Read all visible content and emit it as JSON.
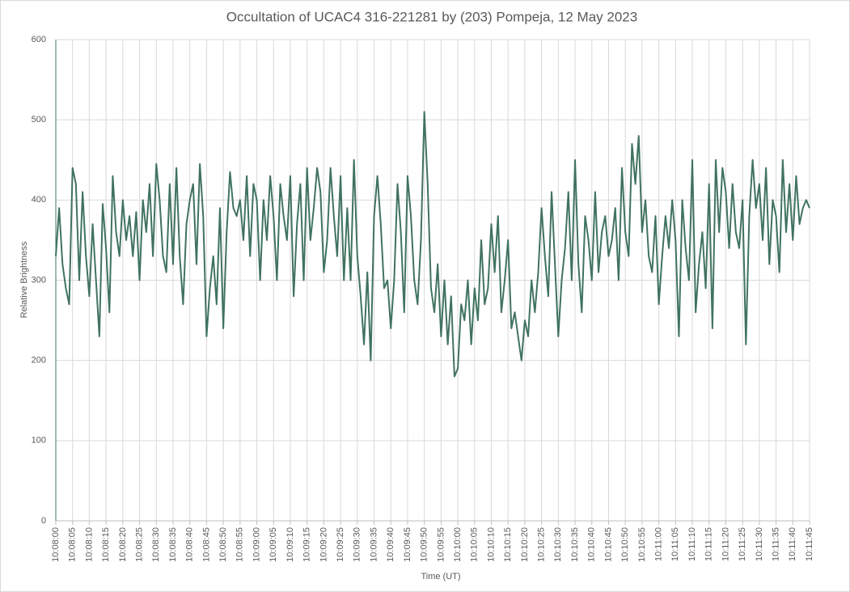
{
  "chart_data": {
    "type": "line",
    "title": "Occultation of UCAC4 316-221281 by (203) Pompeja, 12 May 2023",
    "x_label": "Time (UT)",
    "y_label": "Relative Brightness",
    "color": "#40735f",
    "grid": true,
    "ylim": [
      0,
      600
    ],
    "yticks": [
      0,
      100,
      200,
      300,
      400,
      500,
      600
    ],
    "categories": [
      "10:08:00",
      null,
      null,
      null,
      null,
      "10:08:05",
      null,
      null,
      null,
      null,
      "10:08:10",
      null,
      null,
      null,
      null,
      "10:08:15",
      null,
      null,
      null,
      null,
      "10:08:20",
      null,
      null,
      null,
      null,
      "10:08:25",
      null,
      null,
      null,
      null,
      "10:08:30",
      null,
      null,
      null,
      null,
      "10:08:35",
      null,
      null,
      null,
      null,
      "10:08:40",
      null,
      null,
      null,
      null,
      "10:08:45",
      null,
      null,
      null,
      null,
      "10:08:50",
      null,
      null,
      null,
      null,
      "10:08:55",
      null,
      null,
      null,
      null,
      "10:09:00",
      null,
      null,
      null,
      null,
      "10:09:05",
      null,
      null,
      null,
      null,
      "10:09:10",
      null,
      null,
      null,
      null,
      "10:09:15",
      null,
      null,
      null,
      null,
      "10:09:20",
      null,
      null,
      null,
      null,
      "10:09:25",
      null,
      null,
      null,
      null,
      "10:09:30",
      null,
      null,
      null,
      null,
      "10:09:35",
      null,
      null,
      null,
      null,
      "10:09:40",
      null,
      null,
      null,
      null,
      "10:09:45",
      null,
      null,
      null,
      null,
      "10:09:50",
      null,
      null,
      null,
      null,
      "10:09:55",
      null,
      null,
      null,
      null,
      "10:10:00",
      null,
      null,
      null,
      null,
      "10:10:05",
      null,
      null,
      null,
      null,
      "10:10:10",
      null,
      null,
      null,
      null,
      "10:10:15",
      null,
      null,
      null,
      null,
      "10:10:20",
      null,
      null,
      null,
      null,
      "10:10:25",
      null,
      null,
      null,
      null,
      "10:10:30",
      null,
      null,
      null,
      null,
      "10:10:35",
      null,
      null,
      null,
      null,
      "10:10:40",
      null,
      null,
      null,
      null,
      "10:10:45",
      null,
      null,
      null,
      null,
      "10:10:50",
      null,
      null,
      null,
      null,
      "10:10:55",
      null,
      null,
      null,
      null,
      "10:11:00",
      null,
      null,
      null,
      null,
      "10:11:05",
      null,
      null,
      null,
      null,
      "10:11:10",
      null,
      null,
      null,
      null,
      "10:11:15",
      null,
      null,
      null,
      null,
      "10:11:20",
      null,
      null,
      null,
      null,
      "10:11:25",
      null,
      null,
      null,
      null,
      "10:11:30",
      null,
      null,
      null,
      null,
      "10:11:35",
      null,
      null,
      null,
      null,
      "10:11:40",
      null,
      null,
      null,
      null,
      "10:11:45"
    ],
    "values": [
      330,
      390,
      320,
      290,
      270,
      440,
      420,
      300,
      410,
      330,
      280,
      370,
      300,
      230,
      395,
      340,
      260,
      430,
      360,
      330,
      400,
      350,
      380,
      330,
      385,
      300,
      400,
      360,
      420,
      330,
      445,
      400,
      330,
      310,
      420,
      320,
      440,
      330,
      270,
      370,
      400,
      420,
      320,
      445,
      380,
      230,
      290,
      330,
      270,
      390,
      240,
      360,
      435,
      390,
      380,
      400,
      350,
      430,
      330,
      420,
      400,
      300,
      400,
      350,
      430,
      380,
      300,
      420,
      380,
      350,
      430,
      280,
      370,
      420,
      300,
      440,
      350,
      390,
      440,
      410,
      310,
      350,
      440,
      380,
      330,
      430,
      300,
      390,
      300,
      450,
      330,
      280,
      220,
      310,
      200,
      380,
      430,
      370,
      290,
      300,
      240,
      300,
      420,
      360,
      260,
      430,
      380,
      300,
      270,
      350,
      510,
      420,
      290,
      260,
      320,
      230,
      300,
      220,
      280,
      180,
      190,
      270,
      250,
      300,
      220,
      290,
      250,
      350,
      270,
      290,
      370,
      310,
      380,
      260,
      300,
      350,
      240,
      260,
      230,
      200,
      250,
      230,
      300,
      260,
      310,
      390,
      330,
      280,
      410,
      320,
      230,
      300,
      340,
      410,
      300,
      450,
      320,
      260,
      380,
      350,
      300,
      410,
      310,
      360,
      380,
      330,
      350,
      390,
      300,
      440,
      360,
      330,
      470,
      420,
      480,
      360,
      400,
      330,
      310,
      380,
      270,
      330,
      380,
      340,
      400,
      350,
      230,
      400,
      340,
      300,
      450,
      260,
      320,
      360,
      290,
      420,
      240,
      450,
      360,
      440,
      410,
      340,
      420,
      360,
      340,
      400,
      220,
      380,
      450,
      390,
      420,
      350,
      440,
      320,
      400,
      380,
      310,
      450,
      360,
      420,
      350,
      430,
      370,
      390,
      400,
      390
    ]
  }
}
